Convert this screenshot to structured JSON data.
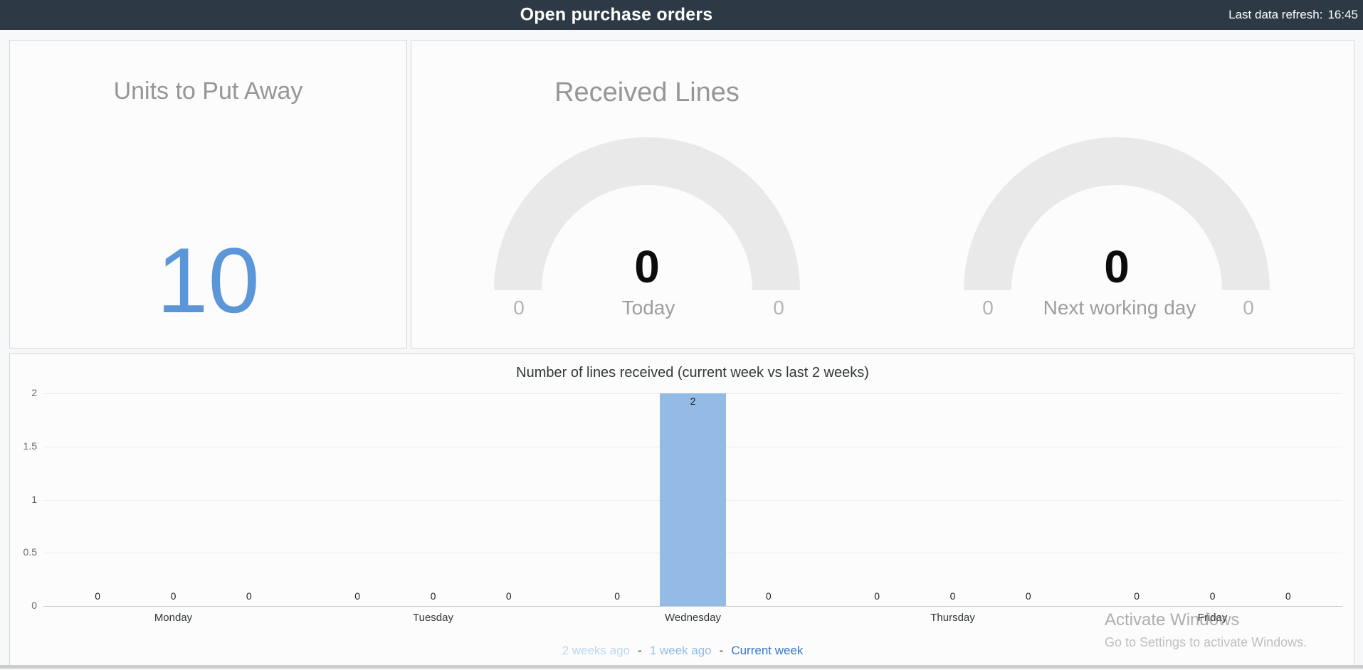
{
  "header": {
    "title": "Open purchase orders",
    "refresh_label": "Last data refresh:",
    "refresh_time": "16:45"
  },
  "colors": {
    "header_bg": "#2d3a46",
    "gauge_arc": "#e9e9e9",
    "kpi_value": "#5b96d8"
  },
  "tiles": {
    "units_to_put_away": {
      "title": "Units to Put Away",
      "value": "10",
      "value_color": "#5b96d8"
    },
    "received_lines": {
      "title": "Received Lines",
      "gauges": [
        {
          "label": "Today",
          "value": "0",
          "min": "0",
          "max": "0"
        },
        {
          "label": "Next working day",
          "value": "0",
          "min": "0",
          "max": "0"
        }
      ]
    }
  },
  "chart_data": {
    "type": "bar",
    "title": "Number of lines received (current week vs last 2 weeks)",
    "categories": [
      "Monday",
      "Tuesday",
      "Wednesday",
      "Thursday",
      "Friday"
    ],
    "series": [
      {
        "name": "2 weeks ago",
        "color": "#bdd5ef",
        "values": [
          0,
          0,
          0,
          0,
          0
        ]
      },
      {
        "name": "1 week ago",
        "color": "#93bbe5",
        "values": [
          0,
          0,
          2,
          0,
          0
        ]
      },
      {
        "name": "Current week",
        "color": "#3576ce",
        "values": [
          0,
          0,
          0,
          0,
          0
        ]
      }
    ],
    "xlabel": "",
    "ylabel": "",
    "ylim": [
      0,
      2
    ],
    "yticks": [
      0,
      0.5,
      1,
      1.5,
      2
    ],
    "grid": true,
    "data_labels": true,
    "legend_position": "bottom",
    "legend_separator": "-"
  },
  "watermark": {
    "line1": "Activate Windows",
    "line2": "Go to Settings to activate Windows."
  }
}
